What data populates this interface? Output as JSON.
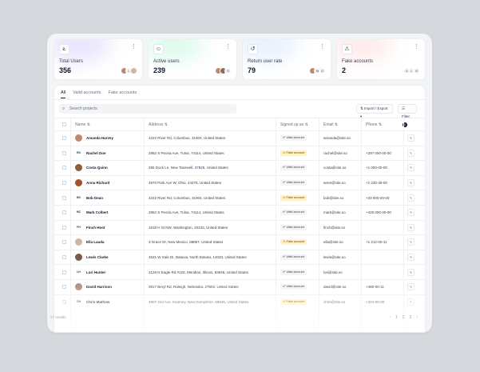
{
  "colors": {
    "accent": "#111827",
    "fake_badge_bg": "#fef3c7",
    "valid_badge_bg": "#f3f4f6"
  },
  "cards": [
    {
      "label": "Total Users",
      "value": "356",
      "icon": "users-icon",
      "glyph": "ఽ",
      "avatars": [
        "",
        "L",
        ""
      ],
      "glow": "#c4b5fd"
    },
    {
      "label": "Active users",
      "value": "239",
      "icon": "user-check-icon",
      "glyph": "☺",
      "avatars": [
        "",
        "",
        "O"
      ],
      "glow": "#a7f3d0"
    },
    {
      "label": "Return user rate",
      "value": "79",
      "icon": "refresh-icon",
      "glyph": "↺",
      "avatars": [
        "",
        "M",
        "G"
      ],
      "glow": "#bfdbfe"
    },
    {
      "label": "Fake accounts",
      "value": "2",
      "icon": "warning-icon",
      "glyph": "⚠",
      "avatars": [
        "U",
        "L",
        "G"
      ],
      "glow": "#fecaca"
    }
  ],
  "tabs": [
    "All",
    "Valid accounts",
    "Fake accounts"
  ],
  "search": {
    "placeholder": "Search projects"
  },
  "toolbar": {
    "import_export": "Import / Export",
    "filter": "Filter",
    "filter_count": "1"
  },
  "columns": {
    "name": "Name",
    "address": "Address",
    "signed_up": "Signed up as",
    "email": "Email",
    "phone": "Phone"
  },
  "rows": [
    {
      "name": "Amanda Harvey",
      "initials": "",
      "avatar": "#c08a6a",
      "address": "4222 River Rd, Columbus, 31904, United States",
      "status": "Valid account",
      "email": "amanda@site.so",
      "phone": ""
    },
    {
      "name": "Rachel Doe",
      "initials": "RD",
      "avatar": "#e5e7eb",
      "address": "2952 S Peoria Ave, Tulsa, 74114, United States",
      "status": "Fake account",
      "email": "rachel@site.so",
      "phone": "+297 000-00-00"
    },
    {
      "name": "Costa Quinn",
      "initials": "",
      "avatar": "#8b5e3c",
      "address": "255 Dock Ln, New Tazewell, 37825, United States",
      "status": "Valid account",
      "email": "costa@site.so",
      "phone": "+1 000-00-00"
    },
    {
      "name": "Anna Richard",
      "initials": "",
      "avatar": "#a0522d",
      "address": "4970 Park Ave W, Ohio, 44275, United States",
      "status": "Valid account",
      "email": "anne@site.so",
      "phone": "+1 230-39-00"
    },
    {
      "name": "Bob Dean",
      "initials": "BD",
      "avatar": "#e5e7eb",
      "address": "4222 River Rd, Columbus, 31904, United States",
      "status": "Fake account",
      "email": "bob@site.so",
      "phone": "+33 000-00-00"
    },
    {
      "name": "Mark Colbert",
      "initials": "MC",
      "avatar": "#e5e7eb",
      "address": "2952 S Peoria Ave, Tulsa, 74114, United States",
      "status": "Valid account",
      "email": "mark@site.so",
      "phone": "+420 000-00-00"
    },
    {
      "name": "Finch Hoot",
      "initials": "FH",
      "avatar": "#e5e7eb",
      "address": "1818 H St NW, Washington, 20433, United States",
      "status": "Valid account",
      "email": "finch@site.so",
      "phone": ""
    },
    {
      "name": "Ella Lauda",
      "initials": "",
      "avatar": "#c7b8a8",
      "address": "3 Grace Dr, New Mexico, 88857, United States",
      "status": "Fake account",
      "email": "ella@site.so",
      "phone": "+1 212-00-11"
    },
    {
      "name": "Lewis Clarke",
      "initials": "",
      "avatar": "#7b5a48",
      "address": "4531 W Sale Dr, Batavia, North Dakota, 14020, United States",
      "status": "Valid account",
      "email": "lewis@site.so",
      "phone": ""
    },
    {
      "name": "Lori Hunter",
      "initials": "LH",
      "avatar": "#e5e7eb",
      "address": "2126 N Eagle Rd #120, Meridian, Illinois, 83646, United States",
      "status": "Valid account",
      "email": "lori@site.so",
      "phone": ""
    },
    {
      "name": "David Harrison",
      "initials": "",
      "avatar": "#b08f80",
      "address": "3917 Beryl Rd, Raleigh, Nebraska, 27602, United States",
      "status": "Valid account",
      "email": "david@site.so",
      "phone": "+480-00-11"
    },
    {
      "name": "Chris Mathew",
      "initials": "CM",
      "avatar": "#e5e7eb",
      "address": "4907 2nd Ave, Kearney, New Hampshire, 68845, United States",
      "status": "Fake account",
      "email": "chris@site.so",
      "phone": "+234-00-00"
    }
  ],
  "footer": {
    "results": "27 results",
    "pager": [
      "‹",
      "1",
      "2",
      "3",
      "›"
    ]
  }
}
